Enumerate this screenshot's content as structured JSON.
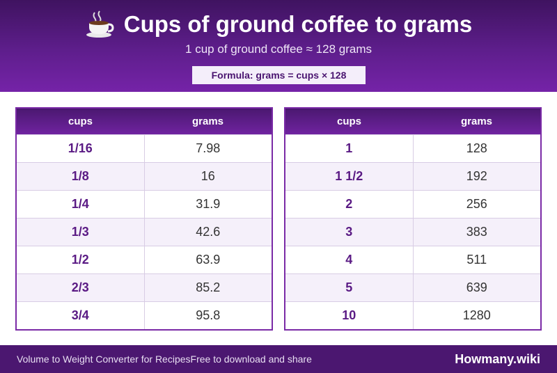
{
  "header": {
    "title": "Cups of ground coffee to grams",
    "subtitle": "1 cup of ground coffee ≈ 128 grams",
    "formula": "Formula: grams = cups × 128",
    "icon": "coffee-cup-icon"
  },
  "table_left": {
    "col1": "cups",
    "col2": "grams",
    "rows": [
      {
        "cups": "1/16",
        "grams": "7.98"
      },
      {
        "cups": "1/8",
        "grams": "16"
      },
      {
        "cups": "1/4",
        "grams": "31.9"
      },
      {
        "cups": "1/3",
        "grams": "42.6"
      },
      {
        "cups": "1/2",
        "grams": "63.9"
      },
      {
        "cups": "2/3",
        "grams": "85.2"
      },
      {
        "cups": "3/4",
        "grams": "95.8"
      }
    ]
  },
  "table_right": {
    "col1": "cups",
    "col2": "grams",
    "rows": [
      {
        "cups": "1",
        "grams": "128"
      },
      {
        "cups": "1 1/2",
        "grams": "192"
      },
      {
        "cups": "2",
        "grams": "256"
      },
      {
        "cups": "3",
        "grams": "383"
      },
      {
        "cups": "4",
        "grams": "511"
      },
      {
        "cups": "5",
        "grams": "639"
      },
      {
        "cups": "10",
        "grams": "1280"
      }
    ]
  },
  "footer": {
    "left_text": "Volume to Weight Converter for Recipes",
    "middle_text": "Free to download and share",
    "brand": "Howmany.wiki"
  },
  "colors": {
    "header_dark": "#3f1360",
    "header_light": "#7523a8",
    "accent_text": "#5a1a84",
    "footer_bg": "#4b1770"
  }
}
